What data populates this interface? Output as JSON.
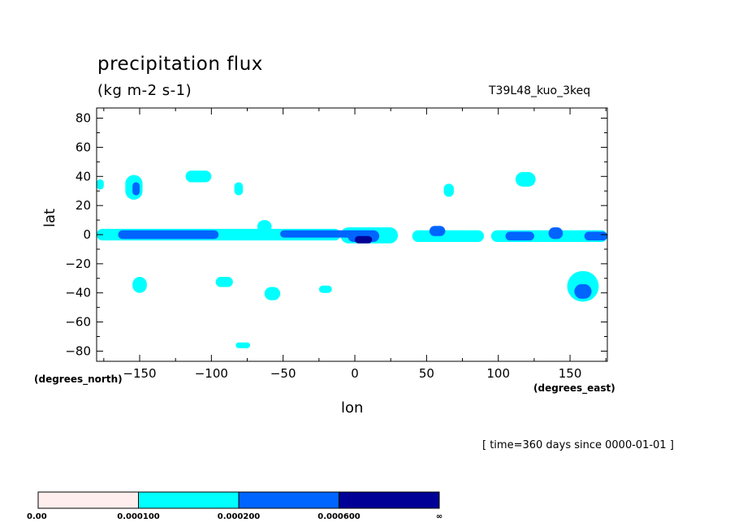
{
  "chart_data": {
    "type": "heatmap",
    "title": "precipitation flux",
    "subtitle": "(kg m-2 s-1)",
    "run_label": "T39L48_kuo_3keq",
    "xlabel": "lon",
    "ylabel": "lat",
    "x_units_label": "(degrees_east)",
    "y_units_label": "(degrees_north)",
    "time_label": "[ time=360 days since 0000-01-01 ]",
    "xlim": [
      -180,
      176
    ],
    "ylim": [
      -87,
      87
    ],
    "x_ticks": [
      -150,
      -100,
      -50,
      0,
      50,
      100,
      150
    ],
    "x_tick_labels": [
      "−150",
      "−100",
      "−50",
      "0",
      "50",
      "100",
      "150"
    ],
    "y_ticks": [
      80,
      60,
      40,
      20,
      0,
      -20,
      -40,
      -60,
      -80
    ],
    "y_tick_labels": [
      "80",
      "60",
      "40",
      "20",
      "0",
      "−20",
      "−40",
      "−60",
      "−80"
    ],
    "levels": [
      {
        "from": 0.0,
        "to": 0.0001,
        "color": "#ffeeee"
      },
      {
        "from": 0.0001,
        "to": 0.0002,
        "color": "#00ffff"
      },
      {
        "from": 0.0002,
        "to": 0.0006,
        "color": "#0064ff"
      },
      {
        "from": 0.0006,
        "to": "inf",
        "color": "#000096"
      }
    ],
    "colorbar_labels": [
      "0.00",
      "0.000100",
      "0.000200",
      "0.000600",
      "∞"
    ],
    "background_color": "#ffffff",
    "features": [
      {
        "lon": [
          -180,
          -10
        ],
        "lat": [
          -4,
          4
        ],
        "level": 1
      },
      {
        "lon": [
          -10,
          30
        ],
        "lat": [
          -6,
          5
        ],
        "level": 1
      },
      {
        "lon": [
          40,
          90
        ],
        "lat": [
          -5,
          3
        ],
        "level": 1
      },
      {
        "lon": [
          95,
          176
        ],
        "lat": [
          -5,
          3
        ],
        "level": 1
      },
      {
        "lon": [
          -165,
          -95
        ],
        "lat": [
          -3,
          3
        ],
        "level": 2
      },
      {
        "lon": [
          -52,
          0
        ],
        "lat": [
          -2,
          3
        ],
        "level": 2
      },
      {
        "lon": [
          -5,
          17
        ],
        "lat": [
          -5,
          3
        ],
        "level": 2
      },
      {
        "lon": [
          52,
          63
        ],
        "lat": [
          -1,
          6
        ],
        "level": 2
      },
      {
        "lon": [
          105,
          125
        ],
        "lat": [
          -4,
          2
        ],
        "level": 2
      },
      {
        "lon": [
          135,
          145
        ],
        "lat": [
          -3,
          5
        ],
        "level": 2
      },
      {
        "lon": [
          160,
          176
        ],
        "lat": [
          -4,
          2
        ],
        "level": 2
      },
      {
        "lon": [
          -68,
          -58
        ],
        "lat": [
          1,
          10
        ],
        "level": 1
      },
      {
        "lon": [
          0,
          12
        ],
        "lat": [
          -6,
          -1
        ],
        "level": 3
      },
      {
        "lon": [
          -160,
          -148
        ],
        "lat": [
          24,
          41
        ],
        "level": 1
      },
      {
        "lon": [
          -155,
          -150
        ],
        "lat": [
          27,
          36
        ],
        "level": 2
      },
      {
        "lon": [
          -118,
          -100
        ],
        "lat": [
          36,
          44
        ],
        "level": 1
      },
      {
        "lon": [
          -84,
          -78
        ],
        "lat": [
          27,
          36
        ],
        "level": 1
      },
      {
        "lon": [
          -180,
          -175
        ],
        "lat": [
          31,
          38
        ],
        "level": 1
      },
      {
        "lon": [
          62,
          69
        ],
        "lat": [
          26,
          35
        ],
        "level": 1
      },
      {
        "lon": [
          112,
          126
        ],
        "lat": [
          33,
          43
        ],
        "level": 1
      },
      {
        "lon": [
          -155,
          -145
        ],
        "lat": [
          -40,
          -29
        ],
        "level": 1
      },
      {
        "lon": [
          -97,
          -85
        ],
        "lat": [
          -36,
          -29
        ],
        "level": 1
      },
      {
        "lon": [
          -25,
          -16
        ],
        "lat": [
          -40,
          -35
        ],
        "level": 1
      },
      {
        "lon": [
          148,
          170
        ],
        "lat": [
          -46,
          -25
        ],
        "level": 1
      },
      {
        "lon": [
          153,
          165
        ],
        "lat": [
          -44,
          -34
        ],
        "level": 2
      },
      {
        "lon": [
          -63,
          -52
        ],
        "lat": [
          -45,
          -36
        ],
        "level": 1
      },
      {
        "lon": [
          -83,
          -73
        ],
        "lat": [
          -78,
          -74
        ],
        "level": 1
      }
    ]
  }
}
